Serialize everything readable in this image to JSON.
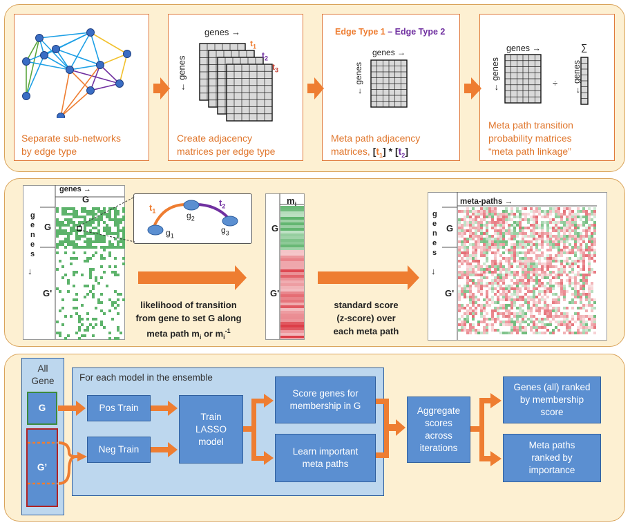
{
  "panel1": {
    "box1_caption": [
      "Separate sub-networks",
      "by edge type"
    ],
    "box2_caption": [
      "Create adjacency",
      "matrices per edge type"
    ],
    "box2_genes_top": "genes →",
    "box2_genes_side": "← genes",
    "box2_t1": "t",
    "box2_t1_sub": "1",
    "box2_t2": "t",
    "box2_t2_sub": "2",
    "box2_t3": "t",
    "box2_t3_sub": "3",
    "box3_header_a": "Edge Type 1",
    "box3_header_sep": " – ",
    "box3_header_b": "Edge Type 2",
    "box3_genes_top": "genes →",
    "box3_genes_side": "← genes",
    "box3_caption_l1": "Meta path adjacency",
    "box3_caption_l2": "matrices, ",
    "box3_t1": "t",
    "box3_t1_sub": "1",
    "box3_star": " * ",
    "box3_t2": "t",
    "box3_t2_sub": "2",
    "box4_genes_top": "genes →",
    "box4_genes_side": "← genes",
    "box4_div": "÷",
    "box4_genes_side2": "← genes",
    "box4_sum": "∑",
    "box4_caption": [
      "Meta path transition",
      "probability matrices",
      "“meta path linkage”"
    ]
  },
  "panel2": {
    "left_genes_top": "genes →",
    "left_col_G": "G",
    "left_side_genes": "g e n e s",
    "left_side_arrow": "↓",
    "left_row_G": "G",
    "left_row_Gp": "G'",
    "inset_t1": "t",
    "inset_t1_sub": "1",
    "inset_t2": "t",
    "inset_t2_sub": "2",
    "inset_g1": "g",
    "inset_g1_sub": "1",
    "inset_g2": "g",
    "inset_g2_sub": "2",
    "inset_g3": "g",
    "inset_g3_sub": "3",
    "caption1_l1": "likelihood of transition",
    "caption1_l2": "from gene to set G along",
    "caption1_l3a": "meta path m",
    "caption1_l3_sub": "i",
    "caption1_l3b": " or m",
    "caption1_l3_sub2": "i",
    "caption1_l3_sup": "-1",
    "mid_header": "m",
    "mid_header_sub": "i",
    "mid_row_G": "G",
    "mid_row_Gp": "G'",
    "caption2": [
      "standard score",
      "(z-score) over",
      "each meta path"
    ],
    "right_header": "meta-paths →",
    "right_side_genes": "g e n e s",
    "right_side_arrow": "↓",
    "right_row_G": "G",
    "right_row_Gp": "G'"
  },
  "panel3": {
    "all_gene": [
      "All",
      "Gene"
    ],
    "g_label": "G",
    "gp_label": "G’",
    "ensemble_title": "For each model in the ensemble",
    "pos_train": "Pos Train",
    "neg_train": "Neg Train",
    "train_lasso": [
      "Train",
      "LASSO",
      "model"
    ],
    "score_genes": [
      "Score genes for",
      "membership in G"
    ],
    "learn_paths": [
      "Learn important",
      "meta paths"
    ],
    "aggregate": [
      "Aggregate",
      "scores",
      "across",
      "iterations"
    ],
    "ranked_genes": [
      "Genes (all) ranked",
      "by membership",
      "score"
    ],
    "ranked_paths": [
      "Meta paths",
      "ranked by",
      "importance"
    ]
  },
  "colors": {
    "panel_bg": "#fdf0d2",
    "orange": "#ee7d31",
    "blue_box": "#5b8fd1",
    "purple": "#7030a0",
    "light_blue": "#bdd7ee",
    "green_cell": "#5db36b"
  }
}
